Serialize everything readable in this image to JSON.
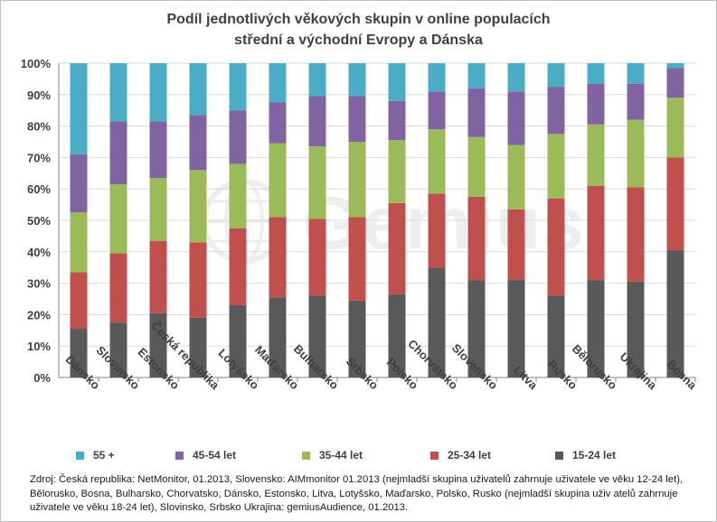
{
  "chart_data": {
    "type": "bar",
    "stacked": true,
    "normalized": true,
    "title_lines": [
      "Podíl jednotlivých věkových skupin v online populacích",
      "střední a východní Evropy a Dánska"
    ],
    "categories": [
      "Dánsko",
      "Slovinsko",
      "Estonsko",
      "Česká republika",
      "Lotyšsko",
      "Maďarsko",
      "Bulharsko",
      "Srbsko",
      "Polsko",
      "Chorvatsko",
      "Slovensko",
      "Litva",
      "Rusko",
      "Bělorusko",
      "Ukrajina",
      "Bosna"
    ],
    "y_ticks": [
      "0%",
      "10%",
      "20%",
      "30%",
      "40%",
      "50%",
      "60%",
      "70%",
      "80%",
      "90%",
      "100%"
    ],
    "ylim": [
      0,
      100
    ],
    "grid": true,
    "legend_position": "bottom",
    "series": [
      {
        "name": "15-24 let",
        "color": "#595959",
        "values": [
          15.5,
          17.5,
          20.5,
          19.0,
          23.0,
          25.5,
          26.0,
          24.5,
          26.5,
          35.0,
          31.0,
          31.0,
          26.0,
          31.0,
          30.5,
          40.5
        ]
      },
      {
        "name": "25-34 let",
        "color": "#c0504d",
        "values": [
          18.0,
          22.0,
          23.0,
          24.0,
          24.5,
          25.5,
          24.5,
          26.5,
          29.0,
          23.5,
          26.5,
          22.5,
          31.0,
          30.0,
          30.0,
          29.5
        ]
      },
      {
        "name": "35-44 let",
        "color": "#9bbb59",
        "values": [
          19.0,
          22.0,
          20.0,
          23.0,
          20.5,
          23.5,
          23.0,
          24.0,
          20.0,
          20.5,
          19.0,
          20.5,
          20.5,
          19.5,
          21.5,
          19.0
        ]
      },
      {
        "name": "45-54 let",
        "color": "#8064a2",
        "values": [
          18.5,
          20.0,
          18.0,
          17.5,
          17.0,
          13.0,
          16.0,
          14.5,
          12.5,
          12.0,
          15.5,
          17.0,
          15.0,
          13.0,
          11.5,
          9.5
        ]
      },
      {
        "name": "55 +",
        "color": "#4bacc6",
        "values": [
          29.0,
          18.5,
          18.5,
          16.5,
          15.0,
          12.5,
          10.5,
          10.5,
          12.0,
          9.0,
          8.0,
          9.0,
          7.5,
          6.5,
          6.5,
          1.5
        ]
      }
    ],
    "legend_order": [
      "55 +",
      "45-54 let",
      "35-44 let",
      "25-34 let",
      "15-24 let"
    ],
    "source_text": "Zdroj: Česká republika: NetMonitor, 01.2013, Slovensko: AIMmonitor 01.2013 (nejmladší skupina uživatelů zahrnuje uživatele ve věku 12-24 let), Bělorusko, Bosna, Bulharsko, Chorvatsko, Dánsko, Estonsko, Litva, Lotyšsko, Maďarsko, Polsko, Rusko (nejmladší skupina uživ atelů zahrnuje uživatele ve věku  18-24 let), Slovinsko, Srbsko Ukrajina: gemiusAudience, 01.2013.",
    "watermark_text": "Gemius"
  }
}
